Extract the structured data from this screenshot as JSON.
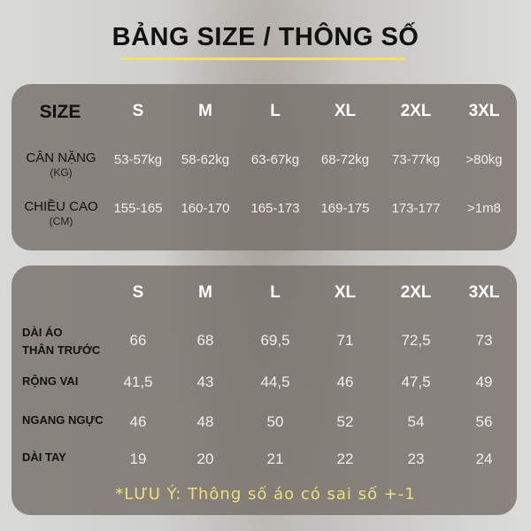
{
  "title": "BẢNG SIZE / THÔNG SỐ",
  "colors": {
    "accent": "#f3e06a",
    "panel": "#76706a"
  },
  "table1": {
    "size_label": "SIZE",
    "sizes": [
      "S",
      "M",
      "L",
      "XL",
      "2XL",
      "3XL"
    ],
    "rows": [
      {
        "label": "CÂN NẶNG",
        "unit": "(KG)",
        "values": [
          "53-57kg",
          "58-62kg",
          "63-67kg",
          "68-72kg",
          "73-77kg",
          ">80kg"
        ]
      },
      {
        "label": "CHIỀU CAO",
        "unit": "(CM)",
        "values": [
          "155-165",
          "160-170",
          "165-173",
          "169-175",
          "173-177",
          ">1m8"
        ]
      }
    ]
  },
  "table2": {
    "sizes": [
      "S",
      "M",
      "L",
      "XL",
      "2XL",
      "3XL"
    ],
    "rows": [
      {
        "label": "DÀI ÁO\nTHÂN TRƯỚC",
        "values": [
          "66",
          "68",
          "69,5",
          "71",
          "72,5",
          "73"
        ]
      },
      {
        "label": "RỘNG VAI",
        "values": [
          "41,5",
          "43",
          "44,5",
          "46",
          "47,5",
          "49"
        ]
      },
      {
        "label": "NGANG NGỰC",
        "values": [
          "46",
          "48",
          "50",
          "52",
          "54",
          "56"
        ]
      },
      {
        "label": "DÀI TAY",
        "values": [
          "19",
          "20",
          "21",
          "22",
          "23",
          "24"
        ]
      }
    ]
  },
  "note": "*LƯU Ý: Thông số áo có sai số +-1"
}
